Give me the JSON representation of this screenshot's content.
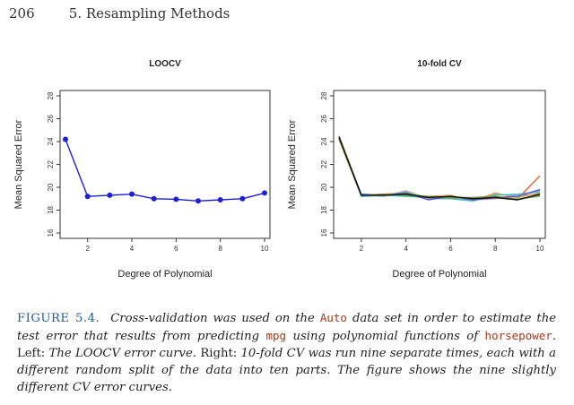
{
  "header": {
    "page_number": "206",
    "section": "5. Resampling Methods"
  },
  "colors": {
    "loocv": "#1f1fd6",
    "caption_label": "#1f5d8a",
    "code": "#a0391a"
  },
  "chart_data": [
    {
      "type": "line",
      "title": "LOOCV",
      "xlabel": "Degree of Polynomial",
      "ylabel": "Mean Squared Error",
      "xlim": [
        1,
        10
      ],
      "ylim": [
        16,
        28
      ],
      "xticks": [
        2,
        4,
        6,
        8,
        10
      ],
      "yticks": [
        16,
        18,
        20,
        22,
        24,
        26,
        28
      ],
      "grid": false,
      "series": [
        {
          "x": [
            1,
            2,
            3,
            4,
            5,
            6,
            7,
            8,
            9,
            10
          ],
          "values": [
            24.2,
            19.2,
            19.3,
            19.4,
            19.0,
            18.95,
            18.8,
            18.9,
            19.0,
            19.5
          ],
          "color": "#1f1fd6",
          "markers": true
        }
      ]
    },
    {
      "type": "line",
      "title": "10-fold CV",
      "xlabel": "Degree of Polynomial",
      "ylabel": "Mean Squared Error",
      "xlim": [
        1,
        10
      ],
      "ylim": [
        16,
        28
      ],
      "xticks": [
        2,
        4,
        6,
        8,
        10
      ],
      "yticks": [
        16,
        18,
        20,
        22,
        24,
        26,
        28
      ],
      "grid": false,
      "series": [
        {
          "x": [
            1,
            2,
            3,
            4,
            5,
            6,
            7,
            8,
            9,
            10
          ],
          "values": [
            24.5,
            19.3,
            19.4,
            19.5,
            19.1,
            19.2,
            19.0,
            19.1,
            19.0,
            21.0
          ],
          "color": "#e8602c"
        },
        {
          "x": [
            1,
            2,
            3,
            4,
            5,
            6,
            7,
            8,
            9,
            10
          ],
          "values": [
            24.3,
            19.2,
            19.3,
            19.4,
            19.0,
            19.0,
            18.9,
            19.4,
            19.3,
            19.7
          ],
          "color": "#8fb0d8"
        },
        {
          "x": [
            1,
            2,
            3,
            4,
            5,
            6,
            7,
            8,
            9,
            10
          ],
          "values": [
            24.4,
            19.3,
            19.2,
            19.7,
            19.0,
            19.1,
            18.9,
            19.0,
            19.3,
            19.4
          ],
          "color": "#c8a0d0"
        },
        {
          "x": [
            1,
            2,
            3,
            4,
            5,
            6,
            7,
            8,
            9,
            10
          ],
          "values": [
            24.2,
            19.2,
            19.4,
            19.3,
            19.2,
            19.3,
            18.8,
            19.5,
            19.1,
            19.5
          ],
          "color": "#e0a040"
        },
        {
          "x": [
            1,
            2,
            3,
            4,
            5,
            6,
            7,
            8,
            9,
            10
          ],
          "values": [
            24.3,
            19.3,
            19.3,
            19.6,
            19.1,
            19.1,
            19.0,
            19.2,
            19.0,
            19.2
          ],
          "color": "#7fbf7f"
        },
        {
          "x": [
            1,
            2,
            3,
            4,
            5,
            6,
            7,
            8,
            9,
            10
          ],
          "values": [
            24.4,
            19.2,
            19.3,
            19.2,
            19.1,
            19.0,
            18.8,
            19.3,
            19.4,
            19.6
          ],
          "color": "#40c0c0"
        },
        {
          "x": [
            1,
            2,
            3,
            4,
            5,
            6,
            7,
            8,
            9,
            10
          ],
          "values": [
            24.3,
            19.4,
            19.3,
            19.5,
            18.9,
            19.2,
            18.9,
            19.1,
            19.2,
            19.8
          ],
          "color": "#5a5ac8"
        },
        {
          "x": [
            1,
            2,
            3,
            4,
            5,
            6,
            7,
            8,
            9,
            10
          ],
          "values": [
            24.2,
            19.3,
            19.4,
            19.3,
            19.2,
            19.1,
            19.1,
            19.2,
            18.9,
            19.3
          ],
          "color": "#7a8a3a"
        },
        {
          "x": [
            1,
            2,
            3,
            4,
            5,
            6,
            7,
            8,
            9,
            10
          ],
          "values": [
            24.4,
            19.3,
            19.3,
            19.4,
            19.1,
            19.2,
            19.0,
            19.1,
            18.9,
            19.4
          ],
          "color": "#111111"
        }
      ]
    }
  ],
  "caption": {
    "label": "FIGURE 5.4.",
    "t1": "Cross-validation was used on the",
    "c1": "Auto",
    "t2": "data set in order to estimate the test error that results from predicting",
    "c2": "mpg",
    "t3": "using polynomial functions of",
    "c3": "horsepower",
    "t4": ". Left:",
    "t5": "The LOOCV error curve.",
    "t6": "Right:",
    "t7": "10-fold CV was run nine separate times, each with a different random split of the data into ten parts. The figure shows the nine slightly different CV error curves."
  }
}
